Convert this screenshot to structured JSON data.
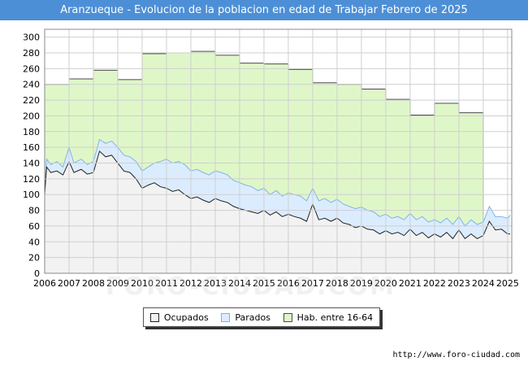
{
  "title": "Aranzueque - Evolucion de la poblacion en edad de Trabajar Febrero de 2025",
  "source_url": "http://www.foro-ciudad.com",
  "watermark": "FORO-CIUDAD.COM",
  "colors": {
    "title_bg": "#4d8fd6",
    "ocupados_fill": "#f2f2f2",
    "ocupados_line": "#222222",
    "parados_fill": "#dcecff",
    "parados_line": "#7fb3e8",
    "hab_fill": "#dff7c8",
    "hab_line": "#4c4c4c"
  },
  "chart_data": {
    "type": "area",
    "title": "Aranzueque - Evolucion de la poblacion en edad de Trabajar Febrero de 2025",
    "xlabel": "",
    "ylabel": "",
    "xlim": [
      2006,
      2025.17
    ],
    "ylim": [
      0,
      310
    ],
    "y_ticks": [
      0,
      20,
      40,
      60,
      80,
      100,
      120,
      140,
      160,
      180,
      200,
      220,
      240,
      260,
      280,
      300
    ],
    "x_ticks": [
      2006,
      2007,
      2008,
      2009,
      2010,
      2011,
      2012,
      2013,
      2014,
      2015,
      2016,
      2017,
      2018,
      2019,
      2020,
      2021,
      2022,
      2023,
      2024,
      2025
    ],
    "grid": true,
    "legend": {
      "position": "bottom-center",
      "entries": [
        "Ocupados",
        "Parados",
        "Hab. entre 16-64"
      ]
    },
    "hab_entre_16_64": {
      "name": "Hab. entre 16-64",
      "years": [
        2006,
        2007,
        2008,
        2009,
        2010,
        2011,
        2012,
        2013,
        2014,
        2015,
        2016,
        2017,
        2018,
        2019,
        2020,
        2021,
        2022,
        2023
      ],
      "values": [
        240,
        247,
        258,
        246,
        279,
        280,
        282,
        277,
        267,
        266,
        259,
        242,
        240,
        234,
        221,
        201,
        216,
        204
      ]
    },
    "parados_plus_ocupados": {
      "name": "Parados",
      "x": [
        2006.0,
        2006.08,
        2006.25,
        2006.5,
        2006.75,
        2007.0,
        2007.2,
        2007.5,
        2007.75,
        2008.0,
        2008.25,
        2008.5,
        2008.75,
        2009.0,
        2009.25,
        2009.5,
        2009.75,
        2010.0,
        2010.25,
        2010.5,
        2010.75,
        2011.0,
        2011.25,
        2011.5,
        2011.75,
        2012.0,
        2012.25,
        2012.5,
        2012.75,
        2013.0,
        2013.25,
        2013.5,
        2013.75,
        2014.0,
        2014.25,
        2014.5,
        2014.75,
        2015.0,
        2015.25,
        2015.5,
        2015.75,
        2016.0,
        2016.25,
        2016.5,
        2016.75,
        2017.0,
        2017.25,
        2017.5,
        2017.75,
        2018.0,
        2018.25,
        2018.5,
        2018.75,
        2019.0,
        2019.25,
        2019.5,
        2019.75,
        2020.0,
        2020.25,
        2020.5,
        2020.75,
        2021.0,
        2021.25,
        2021.5,
        2021.75,
        2022.0,
        2022.25,
        2022.5,
        2022.75,
        2023.0,
        2023.25,
        2023.5,
        2023.75,
        2024.0,
        2024.25,
        2024.5,
        2024.75,
        2025.0,
        2025.1
      ],
      "values": [
        108,
        145,
        138,
        142,
        135,
        160,
        140,
        145,
        138,
        142,
        170,
        165,
        168,
        160,
        150,
        148,
        142,
        130,
        135,
        140,
        142,
        145,
        140,
        142,
        138,
        130,
        132,
        128,
        125,
        130,
        128,
        125,
        118,
        115,
        112,
        110,
        105,
        108,
        100,
        105,
        98,
        102,
        100,
        98,
        92,
        108,
        92,
        95,
        90,
        94,
        88,
        85,
        82,
        84,
        80,
        78,
        72,
        75,
        70,
        72,
        68,
        76,
        68,
        72,
        65,
        68,
        64,
        70,
        62,
        72,
        60,
        68,
        62,
        65,
        85,
        72,
        72,
        70,
        74
      ]
    },
    "ocupados": {
      "name": "Ocupados",
      "x": [
        2006.0,
        2006.08,
        2006.25,
        2006.5,
        2006.75,
        2007.0,
        2007.2,
        2007.5,
        2007.75,
        2008.0,
        2008.25,
        2008.5,
        2008.75,
        2009.0,
        2009.25,
        2009.5,
        2009.75,
        2010.0,
        2010.25,
        2010.5,
        2010.75,
        2011.0,
        2011.25,
        2011.5,
        2011.75,
        2012.0,
        2012.25,
        2012.5,
        2012.75,
        2013.0,
        2013.25,
        2013.5,
        2013.75,
        2014.0,
        2014.25,
        2014.5,
        2014.75,
        2015.0,
        2015.25,
        2015.5,
        2015.75,
        2016.0,
        2016.25,
        2016.5,
        2016.75,
        2017.0,
        2017.25,
        2017.5,
        2017.75,
        2018.0,
        2018.25,
        2018.5,
        2018.75,
        2019.0,
        2019.25,
        2019.5,
        2019.75,
        2020.0,
        2020.25,
        2020.5,
        2020.75,
        2021.0,
        2021.25,
        2021.5,
        2021.75,
        2022.0,
        2022.25,
        2022.5,
        2022.75,
        2023.0,
        2023.25,
        2023.5,
        2023.75,
        2024.0,
        2024.25,
        2024.5,
        2024.75,
        2025.0,
        2025.1
      ],
      "values": [
        100,
        135,
        128,
        130,
        125,
        142,
        128,
        132,
        126,
        128,
        155,
        148,
        150,
        140,
        130,
        128,
        120,
        108,
        112,
        115,
        110,
        108,
        104,
        106,
        100,
        95,
        97,
        93,
        90,
        95,
        92,
        90,
        85,
        82,
        80,
        78,
        76,
        80,
        74,
        78,
        72,
        75,
        72,
        70,
        66,
        88,
        68,
        70,
        66,
        70,
        64,
        62,
        58,
        60,
        56,
        55,
        50,
        54,
        50,
        52,
        48,
        56,
        48,
        52,
        45,
        50,
        46,
        52,
        44,
        55,
        44,
        50,
        44,
        48,
        66,
        55,
        56,
        50,
        50
      ]
    }
  }
}
